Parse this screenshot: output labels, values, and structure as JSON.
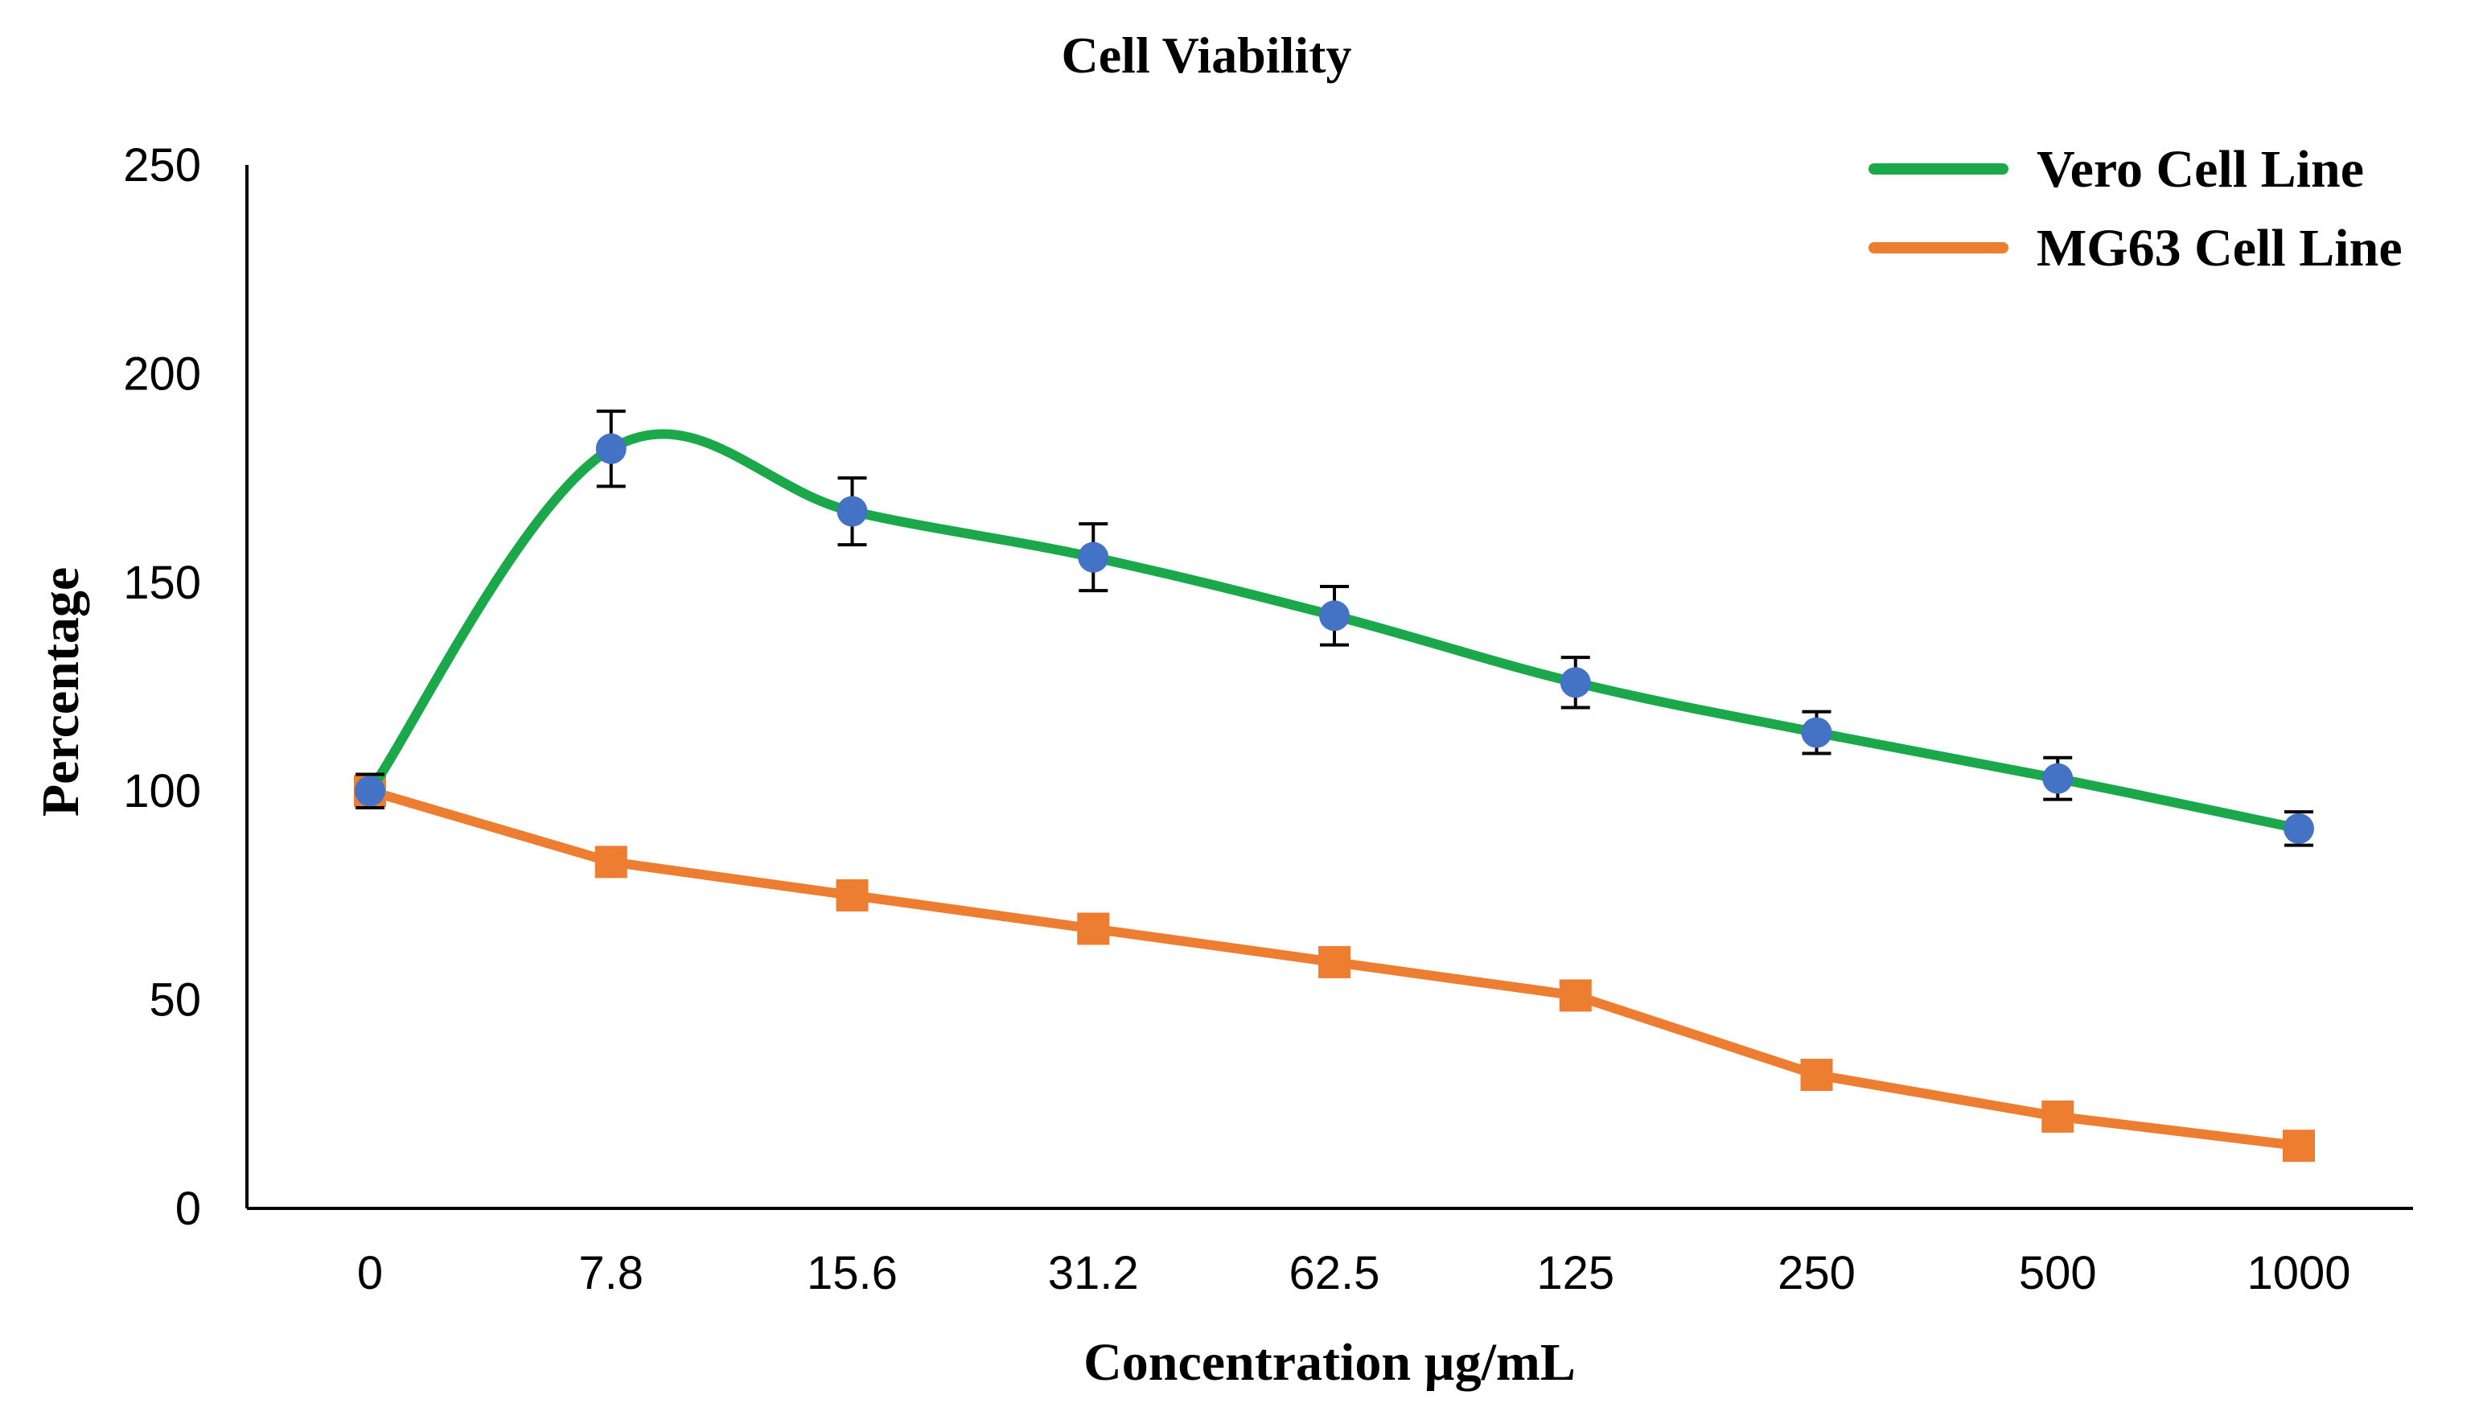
{
  "chart_data": {
    "type": "line",
    "title": "Cell Viability",
    "xlabel": "Concentration µg/mL",
    "ylabel": "Percentage",
    "categories": [
      "0",
      "7.8",
      "15.6",
      "31.2",
      "62.5",
      "125",
      "250",
      "500",
      "1000"
    ],
    "ylim": [
      0,
      250
    ],
    "yticks": [
      0,
      50,
      100,
      150,
      200,
      250
    ],
    "grid": false,
    "legend_position": "top-right",
    "series": [
      {
        "name": "Vero Cell Line",
        "line_color": "#1aa84a",
        "marker_color": "#4472c4",
        "marker": "circle",
        "smooth": true,
        "values": [
          100,
          182,
          167,
          156,
          142,
          126,
          114,
          103,
          91
        ],
        "errors": [
          4,
          9,
          8,
          8,
          7,
          6,
          5,
          5,
          4
        ]
      },
      {
        "name": "MG63 Cell Line",
        "line_color": "#ed7d31",
        "marker_color": "#ed7d31",
        "marker": "square",
        "smooth": false,
        "values": [
          100,
          83,
          75,
          67,
          59,
          51,
          32,
          22,
          15
        ],
        "errors": [
          2,
          3,
          2,
          3,
          2,
          2,
          2,
          2,
          2
        ]
      }
    ]
  }
}
